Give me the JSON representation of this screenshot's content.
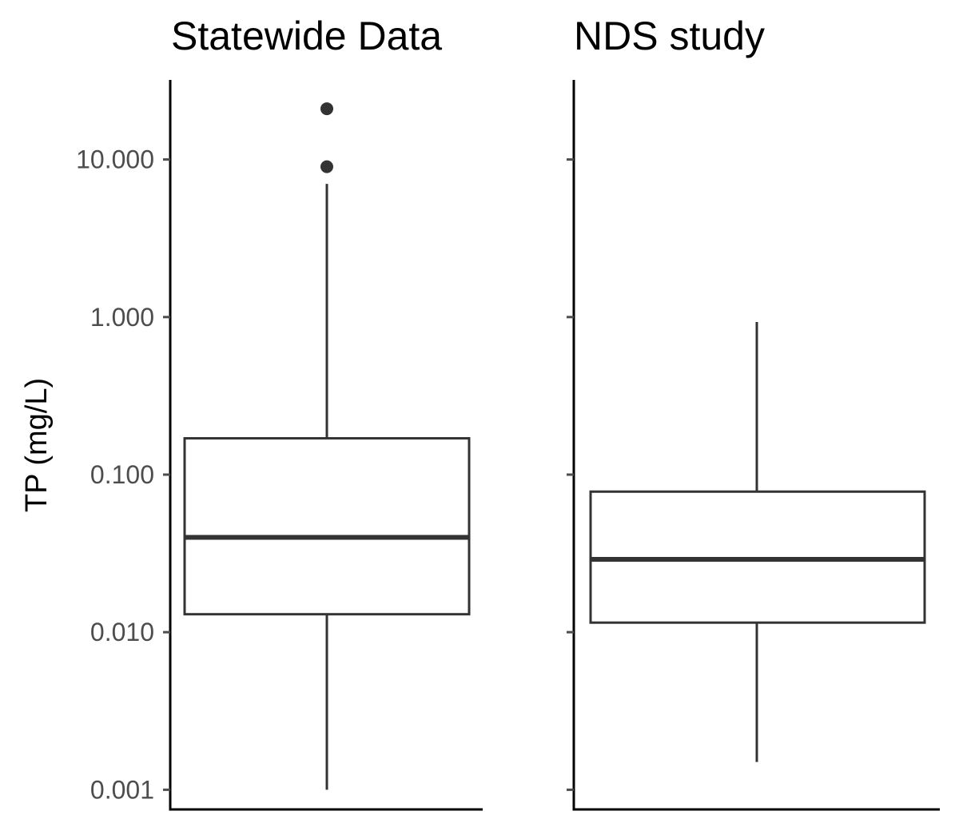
{
  "chart_data": {
    "type": "box",
    "ylabel": "TP (mg/L)",
    "y_scale": "log10",
    "ylim": [
      0.00075,
      32
    ],
    "y_ticks": [
      {
        "value": 10,
        "label": "10.000"
      },
      {
        "value": 1,
        "label": "1.000"
      },
      {
        "value": 0.1,
        "label": "0.100"
      },
      {
        "value": 0.01,
        "label": "0.010"
      },
      {
        "value": 0.001,
        "label": "0.001"
      }
    ],
    "panels": [
      {
        "title": "Statewide Data",
        "box": {
          "whisker_low": 0.001,
          "q1": 0.013,
          "median": 0.04,
          "q3": 0.17,
          "whisker_high": 7.0
        },
        "outliers": [
          9.0,
          21.0
        ]
      },
      {
        "title": "NDS study",
        "box": {
          "whisker_low": 0.0015,
          "q1": 0.0115,
          "median": 0.029,
          "q3": 0.078,
          "whisker_high": 0.93
        },
        "outliers": []
      }
    ],
    "colors": {
      "box_line": "#333333",
      "axis_line": "#000000",
      "tick_label": "#4d4d4d",
      "background": "#ffffff"
    }
  }
}
